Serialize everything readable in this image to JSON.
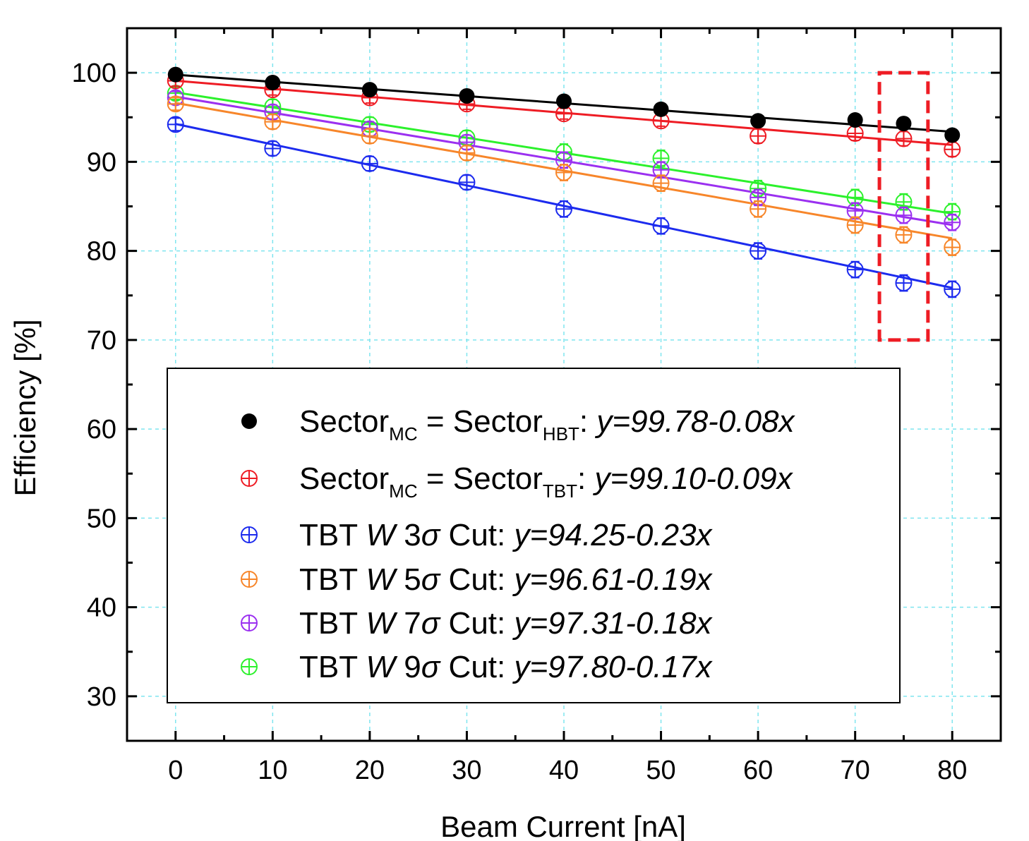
{
  "chart_data": {
    "type": "scatter",
    "xlabel": "Beam Current [nA]",
    "ylabel": "Efficiency [%]",
    "xlim": [
      -5,
      85
    ],
    "ylim": [
      25,
      105
    ],
    "xticks": [
      0,
      10,
      20,
      30,
      40,
      50,
      60,
      70,
      80
    ],
    "yticks": [
      30,
      40,
      50,
      60,
      70,
      80,
      90,
      100
    ],
    "grid": true,
    "legend_position": "lower-center",
    "x": [
      0,
      10,
      20,
      30,
      40,
      50,
      60,
      70,
      75,
      80
    ],
    "series": [
      {
        "key": "hbt",
        "color": "#000000",
        "marker": "filled-circle",
        "values": [
          99.8,
          98.9,
          98.1,
          97.4,
          96.8,
          95.9,
          94.6,
          94.7,
          94.3,
          93.0
        ],
        "errors": [
          0.3,
          0.3,
          0.3,
          0.3,
          0.3,
          0.3,
          0.3,
          0.3,
          0.3,
          0.3
        ],
        "fit": {
          "intercept": 99.78,
          "slope": -0.08
        },
        "legend": {
          "base1": "Sector",
          "sub1": "MC",
          "mid": " = Sector",
          "sub2": "HBT",
          "colon": ": ",
          "eq": "y=99.78-0.08x"
        }
      },
      {
        "key": "tbt",
        "color": "#ee1c24",
        "marker": "crossed-circle",
        "values": [
          99.1,
          98.1,
          97.2,
          96.5,
          95.4,
          94.6,
          92.9,
          93.2,
          92.6,
          91.4
        ],
        "errors": [
          0.6,
          0.6,
          0.6,
          0.6,
          0.6,
          0.6,
          0.8,
          0.8,
          0.8,
          0.8
        ],
        "fit": {
          "intercept": 99.1,
          "slope": -0.09
        },
        "legend": {
          "base1": "Sector",
          "sub1": "MC",
          "mid": " = Sector",
          "sub2": "TBT",
          "colon": ": ",
          "eq": "y=99.10-0.09x"
        }
      },
      {
        "key": "w3",
        "color": "#1c2bee",
        "marker": "crossed-circle",
        "values": [
          94.2,
          91.5,
          89.8,
          87.7,
          84.7,
          82.8,
          80.0,
          77.9,
          76.4,
          75.7
        ],
        "errors": [
          0.7,
          0.8,
          0.8,
          0.8,
          0.9,
          0.9,
          0.9,
          0.9,
          0.9,
          0.9
        ],
        "fit": {
          "intercept": 94.25,
          "slope": -0.23
        },
        "legend": {
          "base1": "TBT ",
          "w": "W",
          "n": " 3",
          "sigma": "σ",
          "cut": " Cut: ",
          "eq": "y=94.25-0.23x"
        }
      },
      {
        "key": "w5",
        "color": "#f7862a",
        "marker": "crossed-circle",
        "values": [
          96.5,
          94.5,
          92.9,
          91.0,
          88.8,
          87.6,
          84.7,
          82.9,
          81.8,
          80.4
        ],
        "errors": [
          0.7,
          0.8,
          0.8,
          0.8,
          0.9,
          0.9,
          0.9,
          0.9,
          0.9,
          0.9
        ],
        "fit": {
          "intercept": 96.61,
          "slope": -0.19
        },
        "legend": {
          "base1": "TBT ",
          "w": "W",
          "n": " 5",
          "sigma": "σ",
          "cut": " Cut: ",
          "eq": "y=96.61-0.19x"
        }
      },
      {
        "key": "w7",
        "color": "#9b30f0",
        "marker": "crossed-circle",
        "values": [
          97.2,
          95.6,
          93.7,
          92.2,
          90.2,
          89.1,
          86.0,
          84.5,
          84.0,
          83.2
        ],
        "errors": [
          0.7,
          0.8,
          0.8,
          0.8,
          0.9,
          0.9,
          0.9,
          0.9,
          0.9,
          0.9
        ],
        "fit": {
          "intercept": 97.31,
          "slope": -0.18
        },
        "legend": {
          "base1": "TBT ",
          "w": "W",
          "n": " 7",
          "sigma": "σ",
          "cut": " Cut: ",
          "eq": "y=97.31-0.18x"
        }
      },
      {
        "key": "w9",
        "color": "#2cf12c",
        "marker": "crossed-circle",
        "values": [
          97.7,
          96.2,
          94.2,
          92.7,
          91.1,
          90.4,
          87.0,
          86.0,
          85.5,
          84.4
        ],
        "errors": [
          0.7,
          0.8,
          0.8,
          0.8,
          0.9,
          0.9,
          0.9,
          0.9,
          0.9,
          0.9
        ],
        "fit": {
          "intercept": 97.8,
          "slope": -0.17
        },
        "legend": {
          "base1": "TBT ",
          "w": "W",
          "n": " 9",
          "sigma": "σ",
          "cut": " Cut: ",
          "eq": "y=97.80-0.17x"
        }
      }
    ],
    "highlight": {
      "x_range": [
        72.5,
        77.5
      ],
      "y_range": [
        70,
        100
      ],
      "color": "#ee1c24",
      "style": "dashed"
    }
  }
}
